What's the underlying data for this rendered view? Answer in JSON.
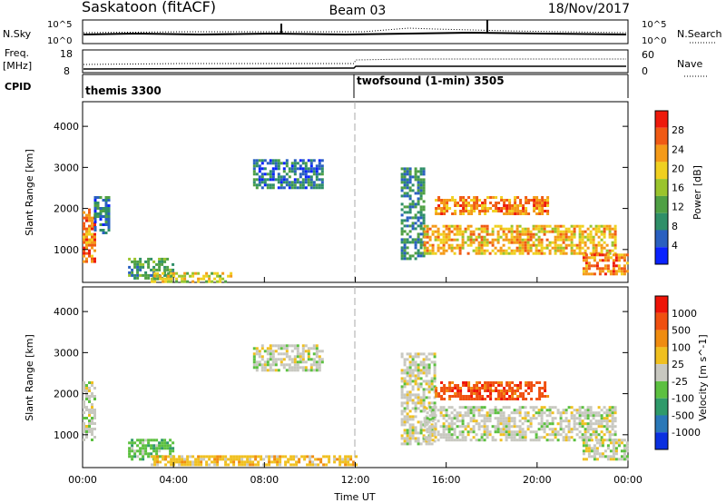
{
  "header": {
    "station": "Saskatoon (fitACF)",
    "beam": "Beam 03",
    "date": "18/Nov/2017"
  },
  "top_panels": {
    "nsky_label": "N.Sky",
    "nsearch_label": "N.Search",
    "nsky_ticks": [
      "10^5",
      "10^0"
    ],
    "nsearch_ticks": [
      "10^5",
      "10^0"
    ],
    "freq_label": "Freq.",
    "freq_unit": "[MHz]",
    "freq_ticks": [
      "18",
      "8"
    ],
    "nave_label": "Nave",
    "nave_ticks": [
      "60",
      "0"
    ],
    "cpid_label": "CPID",
    "modes": [
      {
        "name": "themis 3300",
        "start_hour": 0
      },
      {
        "name": "twofsound (1-min) 3505",
        "start_hour": 12
      }
    ]
  },
  "chart_data": [
    {
      "type": "heatmap",
      "name": "power",
      "ylabel": "Slant Range [km]",
      "xlabel": "",
      "yticks": [
        1000,
        2000,
        3000,
        4000
      ],
      "ylim": [
        200,
        4600
      ],
      "xlim_hours": [
        0,
        24
      ],
      "xticks": [
        "00:00",
        "04:00",
        "08:00",
        "12:00",
        "16:00",
        "20:00",
        "00:00"
      ],
      "colorbar": {
        "label": "Power [dB]",
        "ticks": [
          4,
          8,
          12,
          16,
          20,
          24,
          28
        ],
        "colors": [
          "#0a22ff",
          "#2a60c0",
          "#2f8f68",
          "#4fa044",
          "#9ac42c",
          "#f0d020",
          "#f49a18",
          "#f05a14",
          "#ee1a0c"
        ]
      },
      "regions": [
        {
          "t": [
            0.0,
            0.5
          ],
          "r": [
            700,
            2000
          ],
          "level": 26
        },
        {
          "t": [
            0.5,
            1.2
          ],
          "r": [
            1400,
            2300
          ],
          "level": 6
        },
        {
          "t": [
            2.0,
            4.0
          ],
          "r": [
            300,
            800
          ],
          "level": 10
        },
        {
          "t": [
            3.0,
            6.5
          ],
          "r": [
            250,
            450
          ],
          "level": 18
        },
        {
          "t": [
            7.5,
            10.5
          ],
          "r": [
            2500,
            3200
          ],
          "level": 6
        },
        {
          "t": [
            14.0,
            15.0
          ],
          "r": [
            800,
            3000
          ],
          "level": 8
        },
        {
          "t": [
            15.0,
            23.5
          ],
          "r": [
            900,
            1600
          ],
          "level": 22
        },
        {
          "t": [
            15.5,
            20.5
          ],
          "r": [
            1900,
            2300
          ],
          "level": 25
        },
        {
          "t": [
            22.0,
            24.0
          ],
          "r": [
            400,
            900
          ],
          "level": 26
        }
      ]
    },
    {
      "type": "heatmap",
      "name": "velocity",
      "ylabel": "Slant Range [km]",
      "xlabel": "Time UT",
      "yticks": [
        1000,
        2000,
        3000,
        4000
      ],
      "ylim": [
        200,
        4600
      ],
      "xlim_hours": [
        0,
        24
      ],
      "xticks": [
        "00:00",
        "04:00",
        "08:00",
        "12:00",
        "16:00",
        "20:00",
        "00:00"
      ],
      "colorbar": {
        "label": "Velocity [m s^-1]",
        "ticks": [
          "1000",
          "500",
          "100",
          "25",
          "-25",
          "-100",
          "-500",
          "-1000"
        ],
        "colors": [
          "#0a30e0",
          "#2a78b8",
          "#2f9a6a",
          "#5cc040",
          "#c8c8c0",
          "#f0c020",
          "#f08c10",
          "#f05010",
          "#ee1408"
        ]
      },
      "regions": [
        {
          "t": [
            0.0,
            0.5
          ],
          "r": [
            900,
            2300
          ],
          "level": 4
        },
        {
          "t": [
            2.0,
            4.0
          ],
          "r": [
            400,
            900
          ],
          "level": 3
        },
        {
          "t": [
            3.0,
            12.0
          ],
          "r": [
            250,
            500
          ],
          "level": 5
        },
        {
          "t": [
            7.5,
            10.5
          ],
          "r": [
            2600,
            3200
          ],
          "level": 4
        },
        {
          "t": [
            14.0,
            15.5
          ],
          "r": [
            800,
            3000
          ],
          "level": 4
        },
        {
          "t": [
            15.0,
            23.5
          ],
          "r": [
            900,
            1700
          ],
          "level": 4
        },
        {
          "t": [
            15.5,
            20.5
          ],
          "r": [
            1900,
            2300
          ],
          "level": 7
        },
        {
          "t": [
            22.0,
            24.0
          ],
          "r": [
            400,
            900
          ],
          "level": 4
        }
      ]
    }
  ]
}
